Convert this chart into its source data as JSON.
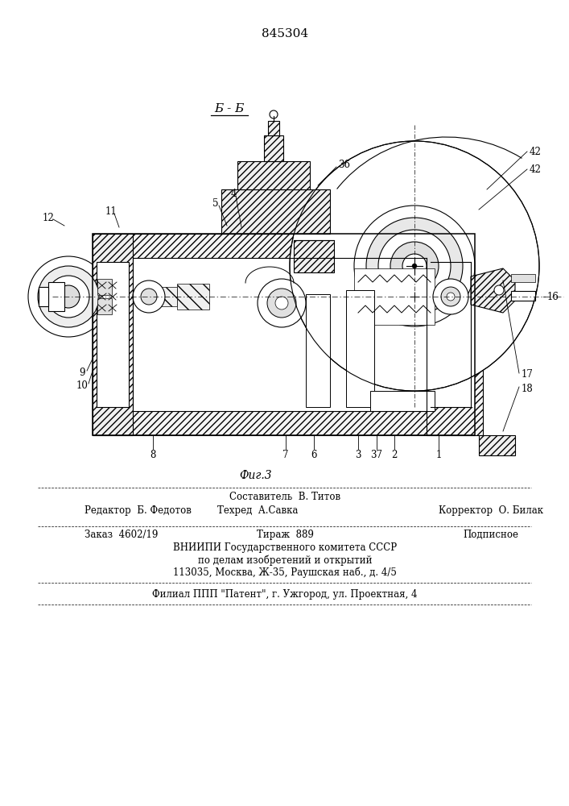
{
  "patent_number": "845304",
  "section_label": "Б - Б",
  "figure_label": "Фиг.3",
  "bg_color": "#ffffff",
  "line_color": "#000000",
  "footer": {
    "line1_center": "Составитель  В. Титов",
    "line2_left": "Редактор  Б. Федотов",
    "line2_center": "Техред  А.Савка",
    "line2_right": "Корректор  О. Билак",
    "line3_left": "Заказ  4602/19",
    "line3_center": "Тираж  889",
    "line3_right": "Подписное",
    "line4": "ВНИИПИ Государственного комитета СССР",
    "line5": "по делам изобретений и открытий",
    "line6": "113035, Москва, Ж-35, Раушская наб., д. 4/5",
    "line7": "Филиал ППП \"Патент\", г. Ужгород, ул. Проектная, 4"
  }
}
